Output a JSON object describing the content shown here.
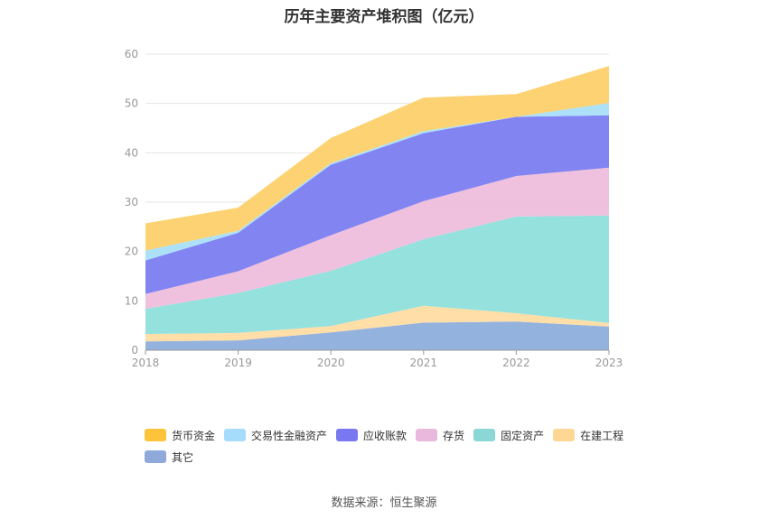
{
  "chart_data": {
    "type": "area",
    "stacked": true,
    "title": "历年主要资产堆积图（亿元）",
    "xlabel": "",
    "ylabel": "",
    "x": [
      "2018",
      "2019",
      "2020",
      "2021",
      "2022",
      "2023"
    ],
    "ylim": [
      0,
      60
    ],
    "yticks": [
      "0",
      "10",
      "20",
      "30",
      "40",
      "50",
      "60"
    ],
    "grid": true,
    "legend_position": "bottom-left",
    "series": [
      {
        "name": "其它",
        "color": "#8eaedc",
        "values": [
          1.8,
          2.0,
          3.6,
          5.6,
          5.8,
          4.8
        ]
      },
      {
        "name": "在建工程",
        "color": "#ffdca3",
        "values": [
          1.5,
          1.5,
          1.3,
          3.4,
          1.7,
          0.7
        ]
      },
      {
        "name": "固定资产",
        "color": "#8fdfdb",
        "values": [
          5.1,
          8.1,
          11.2,
          13.5,
          19.6,
          21.8
        ]
      },
      {
        "name": "存货",
        "color": "#eebedd",
        "values": [
          3.0,
          4.4,
          7.2,
          7.7,
          8.2,
          9.7
        ]
      },
      {
        "name": "应收账款",
        "color": "#7b7ef0",
        "values": [
          6.8,
          7.8,
          14.3,
          13.8,
          12.0,
          10.6
        ]
      },
      {
        "name": "交易性金融资产",
        "color": "#a9dff7",
        "values": [
          2.0,
          0.4,
          0.3,
          0.4,
          0.0,
          2.5
        ]
      },
      {
        "name": "货币资金",
        "color": "#fdd06a",
        "values": [
          5.5,
          4.7,
          5.1,
          6.8,
          4.6,
          7.5
        ]
      }
    ],
    "legend_order": [
      "货币资金",
      "交易性金融资产",
      "应收账款",
      "存货",
      "固定资产",
      "在建工程",
      "其它"
    ],
    "legend_colors": {
      "货币资金": "#fdc43b",
      "交易性金融资产": "#a6dcfb",
      "应收账款": "#7a78f0",
      "存货": "#eab8dc",
      "固定资产": "#8ad7d6",
      "在建工程": "#ffd795",
      "其它": "#8fa9da"
    }
  },
  "source": "数据来源：恒生聚源"
}
